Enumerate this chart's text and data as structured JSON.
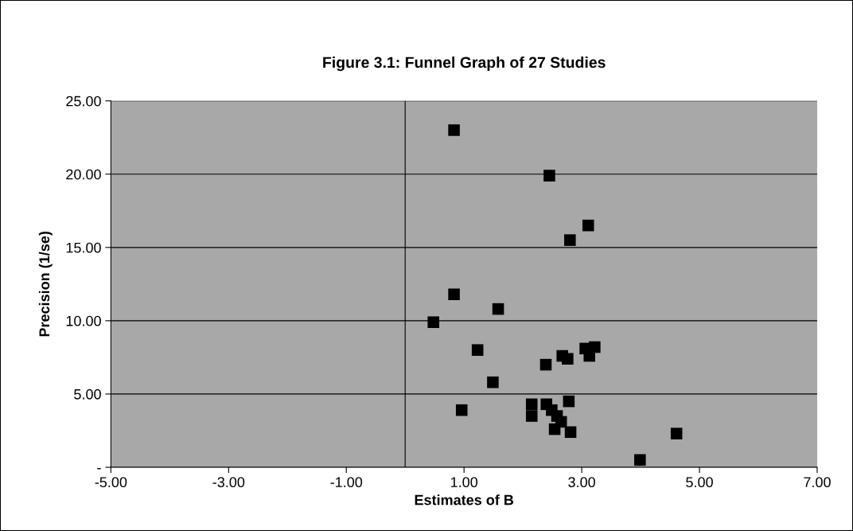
{
  "chart_data": {
    "type": "scatter",
    "title": "Figure 3.1: Funnel Graph of 27 Studies",
    "xlabel": "Estimates of B",
    "ylabel": "Precision (1/se)",
    "x": [
      0.83,
      2.45,
      3.11,
      2.8,
      0.83,
      1.58,
      0.48,
      1.23,
      2.39,
      2.67,
      2.76,
      3.06,
      3.22,
      3.13,
      1.49,
      0.96,
      2.15,
      2.15,
      2.4,
      2.49,
      2.58,
      2.65,
      2.54,
      2.78,
      2.81,
      4.61,
      3.99
    ],
    "values": [
      23.0,
      19.9,
      16.5,
      15.5,
      11.8,
      10.8,
      9.9,
      8.0,
      7.0,
      7.6,
      7.4,
      8.1,
      8.2,
      7.6,
      5.8,
      3.9,
      4.3,
      3.5,
      4.3,
      3.9,
      3.5,
      3.1,
      2.6,
      4.5,
      2.4,
      2.3,
      0.5
    ],
    "color": "#000000",
    "marker": "square",
    "grid": "y",
    "xlim": [
      -5,
      7
    ],
    "xticks": [
      {
        "value": -5,
        "label": "-5.00"
      },
      {
        "value": -3,
        "label": "-3.00"
      },
      {
        "value": -1,
        "label": "-1.00"
      },
      {
        "value": 1,
        "label": "1.00"
      },
      {
        "value": 3,
        "label": "3.00"
      },
      {
        "value": 5,
        "label": "5.00"
      },
      {
        "value": 7,
        "label": "7.00"
      }
    ],
    "ylim": [
      0,
      25
    ],
    "yticks": [
      {
        "value": 0,
        "label": "-"
      },
      {
        "value": 5,
        "label": "5.00"
      },
      {
        "value": 10,
        "label": "10.00"
      },
      {
        "value": 15,
        "label": "15.00"
      },
      {
        "value": 20,
        "label": "20.00"
      },
      {
        "value": 25,
        "label": "25.00"
      }
    ],
    "ref_lines": [
      {
        "axis": "x",
        "value": 0,
        "label": null,
        "color": "#000000"
      }
    ]
  }
}
